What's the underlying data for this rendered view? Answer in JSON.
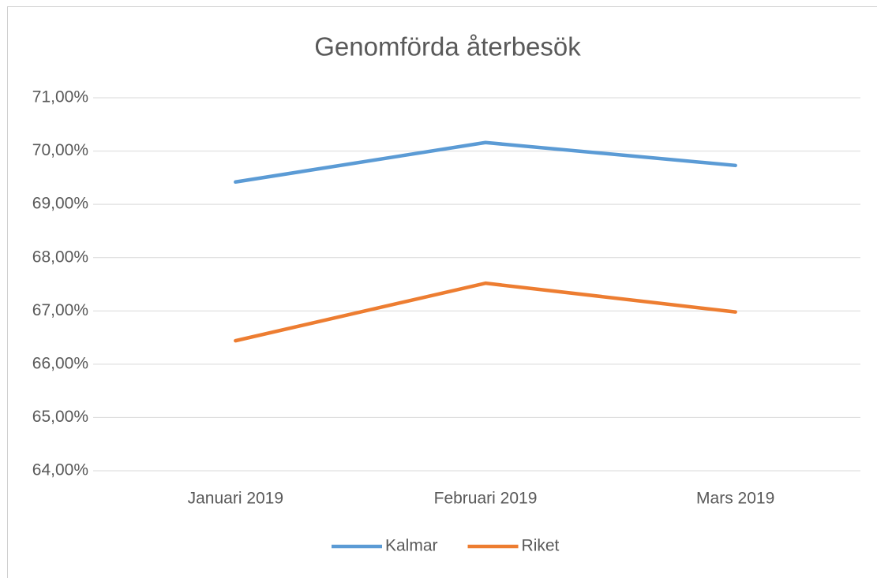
{
  "chart_data": {
    "type": "line",
    "title": "Genomförda återbesök",
    "categories": [
      "Januari 2019",
      "Februari 2019",
      "Mars 2019"
    ],
    "series": [
      {
        "name": "Kalmar",
        "color": "#5b9bd5",
        "values": [
          69.42,
          70.16,
          69.73
        ]
      },
      {
        "name": "Riket",
        "color": "#ed7d31",
        "values": [
          66.44,
          67.52,
          66.98
        ]
      }
    ],
    "ylim": [
      64,
      71
    ],
    "yticks": [
      {
        "value": 64,
        "label": "64,00%"
      },
      {
        "value": 65,
        "label": "65,00%"
      },
      {
        "value": 66,
        "label": "66,00%"
      },
      {
        "value": 67,
        "label": "67,00%"
      },
      {
        "value": 68,
        "label": "68,00%"
      },
      {
        "value": 69,
        "label": "69,00%"
      },
      {
        "value": 70,
        "label": "70,00%"
      },
      {
        "value": 71,
        "label": "71,00%"
      }
    ],
    "grid": true,
    "legend": "bottom"
  }
}
